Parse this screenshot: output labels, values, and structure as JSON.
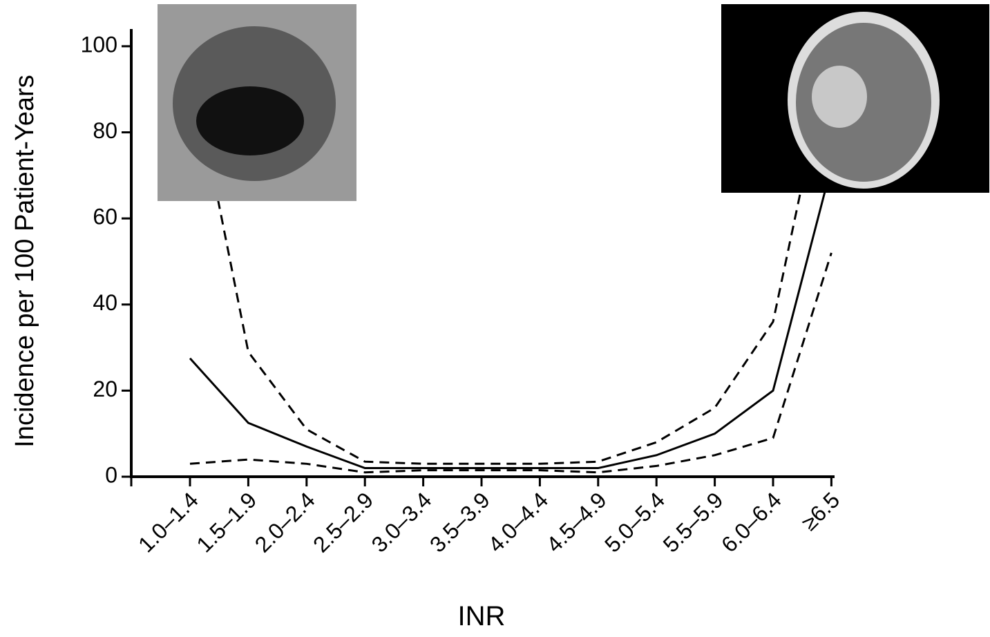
{
  "chart_data": {
    "type": "line",
    "x_label": "INR",
    "y_label": "Incidence per 100 Patient-Years",
    "categories": [
      "1.0–1.4",
      "1.5–1.9",
      "2.0–2.4",
      "2.5–2.9",
      "3.0–3.4",
      "3.5–3.9",
      "4.0–4.4",
      "4.5–4.9",
      "5.0–5.4",
      "5.5–5.9",
      "6.0–6.4",
      "≥6.5"
    ],
    "series": [
      {
        "color": "#000000",
        "dashed": false,
        "values": [
          27.5,
          12.5,
          7,
          2,
          2,
          2,
          2,
          2,
          5,
          10,
          20,
          72
        ]
      },
      {
        "color": "#000000",
        "dashed": true,
        "values": [
          97,
          29,
          11,
          3.5,
          3,
          3,
          3,
          3.5,
          8,
          16,
          36,
          100
        ]
      },
      {
        "color": "#000000",
        "dashed": true,
        "values": [
          3,
          4,
          3,
          1,
          1.5,
          1.5,
          1.5,
          1,
          2.5,
          5,
          9,
          52
        ]
      }
    ],
    "ylim": [
      0,
      104
    ],
    "yticks": [
      0,
      20,
      40,
      60,
      80,
      100
    ]
  }
}
